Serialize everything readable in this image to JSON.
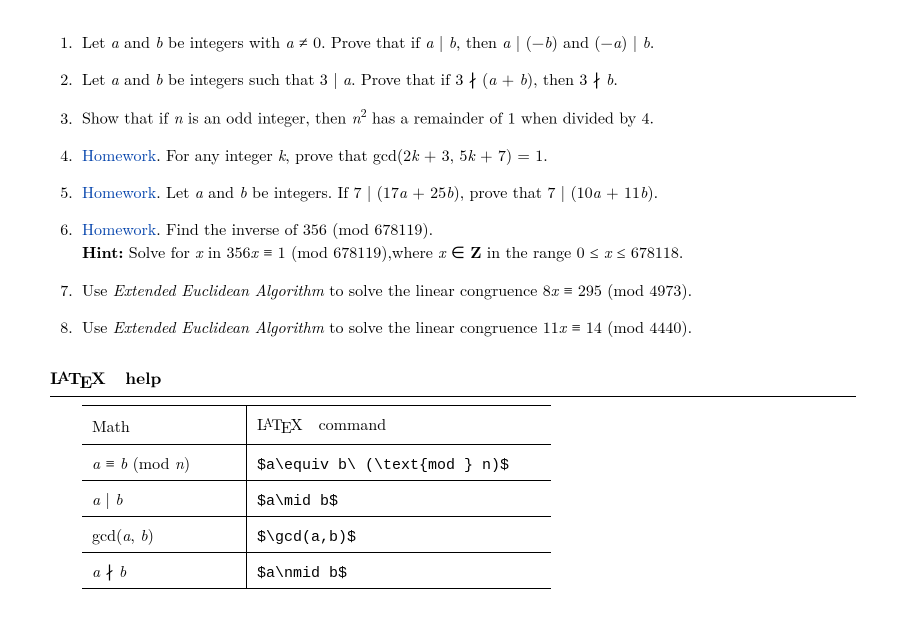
{
  "problems": [
    {
      "num": 1,
      "html": "Let <span class='italic'>a</span> and <span class='italic'>b</span> be integers with <span class='italic'>a</span> ≠ 0. Prove that if <span class='italic'>a</span> | <span class='italic'>b</span>, then <span class='italic'>a</span> | (−<span class='italic'>b</span>) and (−<span class='italic'>a</span>) | <span class='italic'>b</span>."
    },
    {
      "num": 2,
      "html": "Let <span class='italic'>a</span> and <span class='italic'>b</span> be integers such that 3 | <span class='italic'>a</span>. Prove that if 3 ∤ (<span class='italic'>a</span> + <span class='italic'>b</span>), then 3 ∤ <span class='italic'>b</span>."
    },
    {
      "num": 3,
      "html": "Show that if <span class='italic'>n</span> is an odd integer, then <span class='italic'>n</span><sup>2</sup> has a remainder of 1 when divided by 4."
    },
    {
      "num": 4,
      "html": "<span class='hw-link'>Homework</span>. For any integer <span class='italic'>k</span>, prove that gcd(2<span class='italic'>k</span> + 3, 5<span class='italic'>k</span> + 7) = 1."
    },
    {
      "num": 5,
      "html": "<span class='hw-link'>Homework</span>. Let <span class='italic'>a</span> and <span class='italic'>b</span> be integers. If 7 | (17<span class='italic'>a</span> + 25<span class='italic'>b</span>), prove that 7 | (10<span class='italic'>a</span> + 11<span class='italic'>b</span>)."
    },
    {
      "num": 6,
      "html": "<span class='hw-link'>Homework</span>. Find the inverse of 356 (mod 678119).<br><span class='bold'>Hint:</span> Solve for <span class='italic'>x</span> in 356<span class='italic'>x</span> ≡ 1 (mod 678119),where <span class='italic'>x</span> ∈ <span class='bold'>Z</span> in the range 0 ≤ <span class='italic'>x</span> ≤ 678118."
    },
    {
      "num": 7,
      "html": "Use <span class='italic'>Extended Euclidean Algorithm</span> to solve the linear congruence 8<span class='italic'>x</span> ≡ 295 (mod 4973)."
    },
    {
      "num": 8,
      "html": "Use <span class='italic'>Extended Euclidean Algorithm</span> to solve the linear congruence 11<span class='italic'>x</span> ≡ 14 (mod 4440)."
    }
  ],
  "section": {
    "title_html": "<span class='latex-logo'>L<span class='a'>A</span>T<span class='e'>E</span>X</span>&nbsp;&nbsp;help"
  },
  "table": {
    "header": {
      "math": "Math",
      "cmd_html": "<span class='latex-logo'>L<span class='a'>A</span>T<span class='e'>E</span>X</span>&nbsp;&nbsp;command"
    },
    "rows": [
      {
        "math_html": "<span class='italic'>a</span> ≡ <span class='italic'>b</span> (mod <span class='italic'>n</span>)",
        "cmd": "$a\\equiv b\\ (\\text{mod } n)$"
      },
      {
        "math_html": "<span class='italic'>a</span> | <span class='italic'>b</span>",
        "cmd": "$a\\mid b$"
      },
      {
        "math_html": "gcd(<span class='italic'>a</span>, <span class='italic'>b</span>)",
        "cmd": "$\\gcd(a,b)$"
      },
      {
        "math_html": "<span class='italic'>a</span> ∤ <span class='italic'>b</span>",
        "cmd": "$a\\nmid b$"
      }
    ]
  }
}
